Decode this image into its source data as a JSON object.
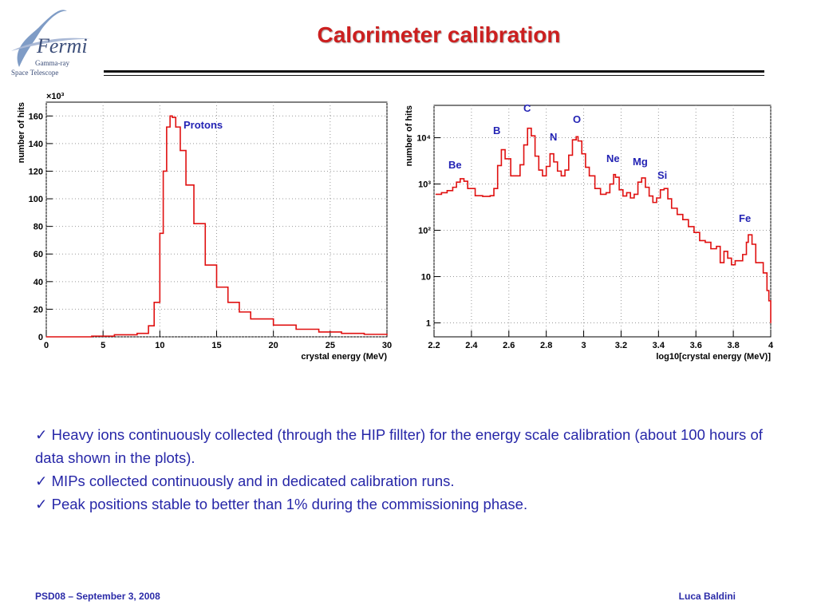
{
  "slide": {
    "title": "Calorimeter calibration",
    "logo": {
      "brand": "Fermi",
      "sub1": "Gamma-ray",
      "sub2": "Space Telescope"
    },
    "footer_left": "PSD08 – September 3, 2008",
    "footer_right": "Luca Baldini",
    "bullets": [
      "✓ Heavy ions continuously collected (through the HIP fillter) for the energy scale calibration (about 100 hours of data shown in the plots).",
      "✓ MIPs collected continuously and in dedicated calibration runs.",
      "✓ Peak positions stable to better than 1% during the commissioning phase."
    ]
  },
  "chart_data": [
    {
      "type": "line",
      "xlabel": "crystal energy (MeV)",
      "ylabel": "number of hits",
      "y_multiplier": "×10³",
      "annotations": [
        "Protons"
      ],
      "xlim": [
        0,
        30
      ],
      "ylim": [
        0,
        170
      ],
      "x_ticks": [
        "0",
        "5",
        "10",
        "15",
        "20",
        "25",
        "30"
      ],
      "y_ticks": [
        "0",
        "20",
        "40",
        "60",
        "80",
        "100",
        "120",
        "140",
        "160"
      ],
      "grid": true,
      "series": [
        {
          "color": "#e01010",
          "x": [
            0,
            4,
            6,
            8,
            9,
            9.5,
            10,
            10.3,
            10.6,
            10.9,
            11.1,
            11.4,
            11.8,
            12.3,
            13,
            14,
            15,
            16,
            17,
            18,
            20,
            22,
            24,
            26,
            28,
            30
          ],
          "y": [
            0,
            0.5,
            1.5,
            2.5,
            8,
            25,
            75,
            120,
            152,
            160,
            159,
            152,
            135,
            110,
            82,
            52,
            36,
            25,
            18,
            13,
            8.5,
            5.5,
            3.5,
            2.5,
            1.8,
            1.4
          ]
        }
      ]
    },
    {
      "type": "line",
      "xlabel": "log10[crystal energy (MeV)]",
      "ylabel": "number of hits",
      "yscale": "log",
      "xlim": [
        2.2,
        4
      ],
      "ylim": [
        0.5,
        50000
      ],
      "x_ticks": [
        "2.2",
        "2.4",
        "2.6",
        "2.8",
        "3",
        "3.2",
        "3.4",
        "3.6",
        "3.8",
        "4"
      ],
      "y_ticks": [
        "1",
        "10",
        "10²",
        "10³",
        "10⁴"
      ],
      "grid": true,
      "annotations": [
        "Be",
        "B",
        "C",
        "N",
        "O",
        "Ne",
        "Mg",
        "Si",
        "Fe"
      ],
      "series": [
        {
          "color": "#e01010",
          "x": [
            2.21,
            2.24,
            2.27,
            2.3,
            2.32,
            2.34,
            2.36,
            2.38,
            2.42,
            2.46,
            2.5,
            2.52,
            2.54,
            2.56,
            2.58,
            2.61,
            2.64,
            2.66,
            2.68,
            2.7,
            2.72,
            2.74,
            2.76,
            2.78,
            2.8,
            2.82,
            2.84,
            2.86,
            2.88,
            2.9,
            2.92,
            2.94,
            2.96,
            2.97,
            2.99,
            3.01,
            3.03,
            3.06,
            3.09,
            3.12,
            3.14,
            3.16,
            3.17,
            3.19,
            3.21,
            3.23,
            3.25,
            3.27,
            3.29,
            3.31,
            3.33,
            3.35,
            3.37,
            3.39,
            3.41,
            3.43,
            3.45,
            3.47,
            3.5,
            3.53,
            3.56,
            3.59,
            3.62,
            3.65,
            3.68,
            3.71,
            3.73,
            3.75,
            3.77,
            3.79,
            3.81,
            3.83,
            3.85,
            3.87,
            3.88,
            3.9,
            3.92,
            3.94,
            3.96,
            3.98,
            3.99,
            4.0
          ],
          "y": [
            600,
            650,
            720,
            850,
            1100,
            1300,
            1150,
            800,
            560,
            540,
            560,
            800,
            2500,
            5500,
            3500,
            1500,
            1500,
            2600,
            7000,
            16000,
            11000,
            4000,
            2000,
            1500,
            2400,
            4500,
            3000,
            1900,
            1500,
            2000,
            4200,
            9000,
            10500,
            8500,
            4500,
            2300,
            1500,
            800,
            600,
            650,
            1000,
            1600,
            1400,
            750,
            550,
            650,
            500,
            600,
            1100,
            1350,
            850,
            550,
            400,
            500,
            750,
            800,
            480,
            300,
            220,
            170,
            120,
            90,
            60,
            55,
            40,
            45,
            20,
            35,
            25,
            18,
            22,
            22,
            30,
            55,
            80,
            50,
            20,
            20,
            12,
            5,
            3,
            1
          ]
        }
      ]
    }
  ]
}
